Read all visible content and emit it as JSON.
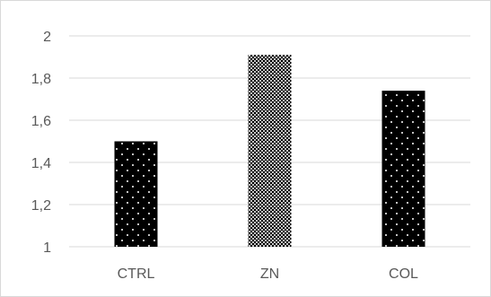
{
  "chart_data": {
    "type": "bar",
    "title": "",
    "xlabel": "",
    "ylabel": "",
    "categories": [
      "CTRL",
      "ZN",
      "COL"
    ],
    "values": [
      1.5,
      1.91,
      1.74
    ],
    "ylim": [
      1,
      2
    ],
    "yticks": [
      "1",
      "1,2",
      "1,4",
      "1,6",
      "1,8",
      "2"
    ],
    "ytick_values": [
      1,
      1.2,
      1.4,
      1.6,
      1.8,
      2
    ],
    "grid": true,
    "legend": "none",
    "colors": {
      "bar": "#000000",
      "bar_dots": "#ffffff",
      "grid": "#d9d9d9",
      "axis": "#d9d9d9",
      "text": "#595959"
    },
    "patterns": [
      "sparse-dots",
      "dense-dots",
      "sparse-dots"
    ]
  }
}
